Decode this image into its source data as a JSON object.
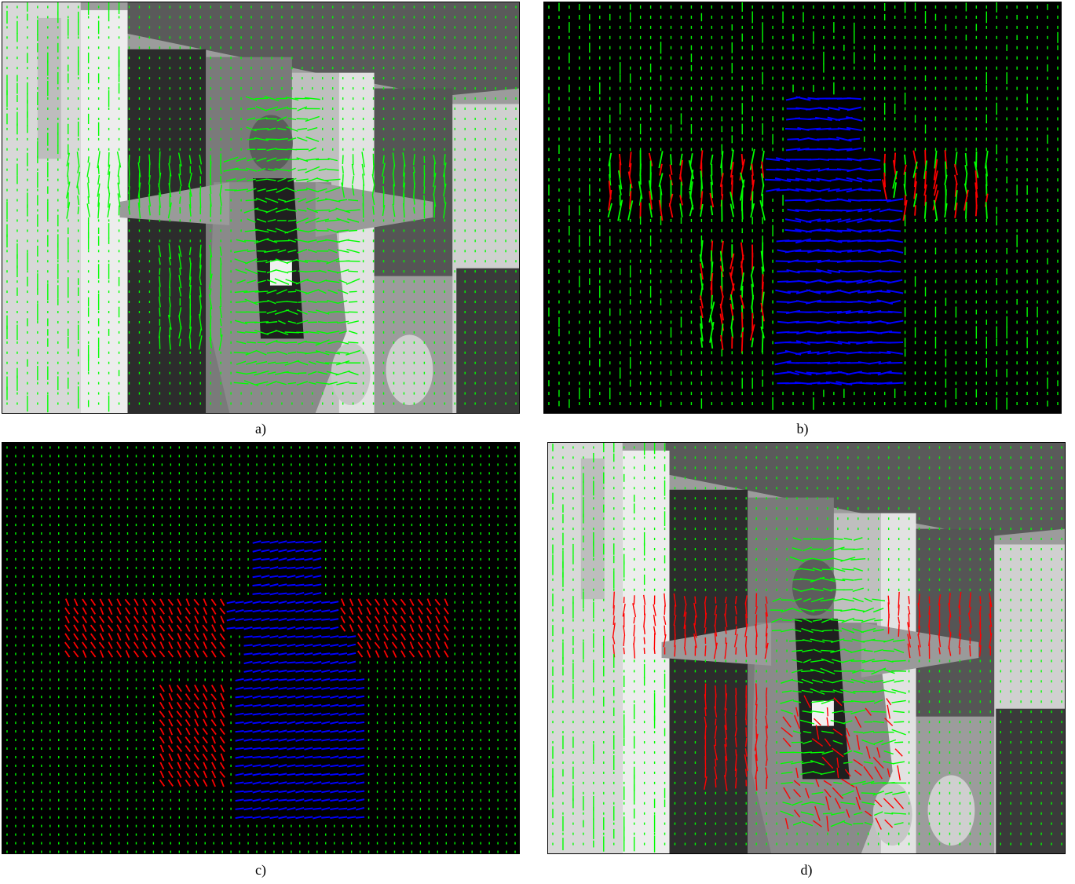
{
  "figure": {
    "panels": [
      {
        "id": "a",
        "caption": "a)",
        "background": "photo",
        "scene": "indoor-office-person-arms-outstretched"
      },
      {
        "id": "b",
        "caption": "b)",
        "background": "black"
      },
      {
        "id": "c",
        "caption": "c)",
        "background": "black"
      },
      {
        "id": "d",
        "caption": "d)",
        "background": "photo",
        "scene": "indoor-office-person-arms-outstretched"
      }
    ],
    "colors": {
      "static_vectors": "#00ff00",
      "body_motion": "#0000ff",
      "arm_motion": "#ff0000",
      "photo_background": "#9a9a9a"
    }
  }
}
